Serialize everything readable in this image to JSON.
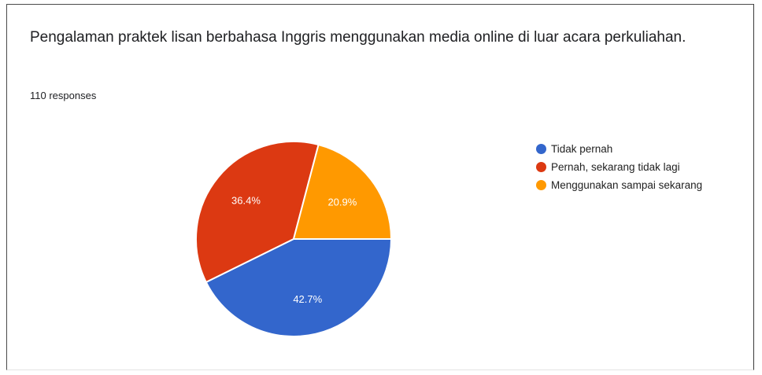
{
  "question": {
    "title": "Pengalaman praktek lisan berbahasa Inggris menggunakan media online di luar acara perkuliahan.",
    "responses": "110 responses"
  },
  "chart_data": {
    "type": "pie",
    "title": "Pengalaman praktek lisan berbahasa Inggris menggunakan media online di luar acara perkuliahan.",
    "total_responses": 110,
    "legend_position": "right",
    "slices": [
      {
        "label": "Tidak pernah",
        "value": 42.7,
        "display": "42.7%",
        "color": "#3366cc"
      },
      {
        "label": "Pernah, sekarang tidak lagi",
        "value": 36.4,
        "display": "36.4%",
        "color": "#dc3912"
      },
      {
        "label": "Menggunakan sampai sekarang",
        "value": 20.9,
        "display": "20.9%",
        "color": "#ff9900"
      }
    ]
  }
}
